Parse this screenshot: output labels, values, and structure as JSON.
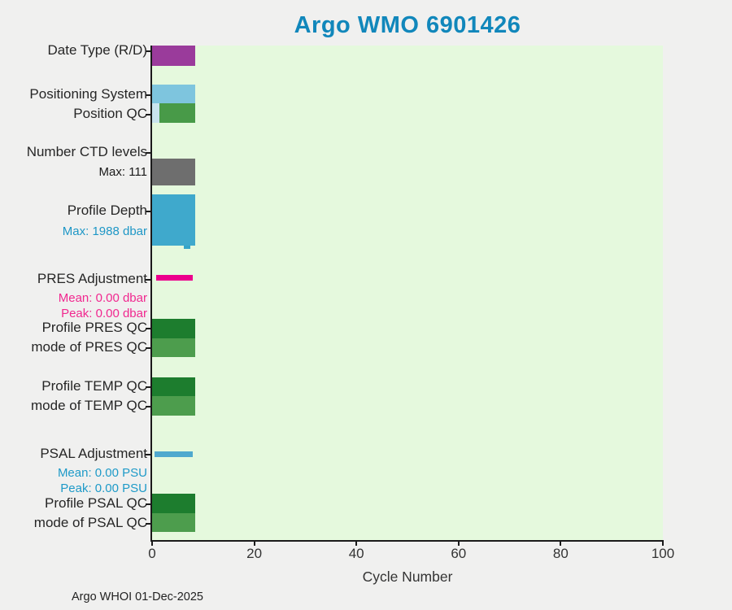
{
  "header": {
    "title": "Argo WMO 6901426",
    "title_color": "#1187bb"
  },
  "footer": {
    "credit": "Argo WHOI 01-Dec-2025"
  },
  "colors": {
    "figure_bg": "#f0f0ef",
    "plot_bg": "#e5f9dd",
    "axis": "#1a1a1a",
    "label_main": "#262626",
    "sub_black": "#1a1a1a",
    "sub_blue": "#1e97c6",
    "sub_pink": "#f1278f"
  },
  "chart_data": {
    "type": "bar",
    "orientation": "horizontal",
    "title": "Argo WMO 6901426",
    "xlabel": "Cycle Number",
    "xlim": [
      0,
      100
    ],
    "xticks": [
      0,
      20,
      40,
      60,
      80,
      100
    ],
    "grid": false,
    "legend": false,
    "footer": "Argo WHOI 01-Dec-2025",
    "x_units": "cycles",
    "max_cycle_shown": 8.4,
    "rows": [
      {
        "label": "Date Type (R/D)",
        "segments": [
          [
            0,
            8.45,
            "#9a3b9b"
          ]
        ],
        "annotations": []
      },
      {
        "label": "Positioning System",
        "segments": [
          [
            0,
            8.45,
            "#7ec5de"
          ]
        ],
        "annotations": []
      },
      {
        "label": "Position QC",
        "segments": [
          [
            0,
            1.4,
            "#c9e4ee"
          ],
          [
            1.4,
            8.45,
            "#489a48"
          ]
        ],
        "annotations": []
      },
      {
        "label": "Number CTD levels",
        "segments": [
          [
            0,
            8.45,
            "#6e6e6e"
          ]
        ],
        "annotations": [
          "Max: 111"
        ],
        "annotation_color": "#1a1a1a"
      },
      {
        "label": "Profile Depth",
        "segments": [
          [
            0,
            8.45,
            "#3fa9cc"
          ]
        ],
        "annotations": [
          "Max: 1988 dbar"
        ],
        "annotation_color": "#1e97c6",
        "marker": {
          "range": [
            6.2,
            7.5
          ],
          "color": "#35a5c9"
        }
      },
      {
        "label": "PRES Adjustment",
        "segments": [
          [
            0.8,
            8.0,
            "#ec008c"
          ]
        ],
        "annotations": [
          "Mean: 0.00 dbar",
          "Peak: 0.00 dbar"
        ],
        "annotation_color": "#f1278f"
      },
      {
        "label": "Profile PRES QC",
        "segments": [
          [
            0,
            8.45,
            "#1d7d2e"
          ]
        ],
        "annotations": []
      },
      {
        "label": "mode of PRES QC",
        "segments": [
          [
            0,
            8.45,
            "#4d9d4d"
          ]
        ],
        "annotations": []
      },
      {
        "label": "Profile TEMP QC",
        "segments": [
          [
            0,
            8.45,
            "#1d7d2e"
          ]
        ],
        "annotations": []
      },
      {
        "label": "mode of TEMP QC",
        "segments": [
          [
            0,
            8.45,
            "#4d9d4d"
          ]
        ],
        "annotations": []
      },
      {
        "label": "PSAL Adjustment",
        "segments": [
          [
            0.5,
            8.0,
            "#4fa9ce"
          ]
        ],
        "annotations": [
          "Mean: 0.00 PSU",
          "Peak: 0.00 PSU"
        ],
        "annotation_color": "#1e9ac8"
      },
      {
        "label": "Profile PSAL QC",
        "segments": [
          [
            0,
            8.45,
            "#1d7d2e"
          ]
        ],
        "annotations": []
      },
      {
        "label": "mode of PSAL QC",
        "segments": [
          [
            0,
            8.45,
            "#4d9d4d"
          ]
        ],
        "annotations": []
      }
    ]
  }
}
